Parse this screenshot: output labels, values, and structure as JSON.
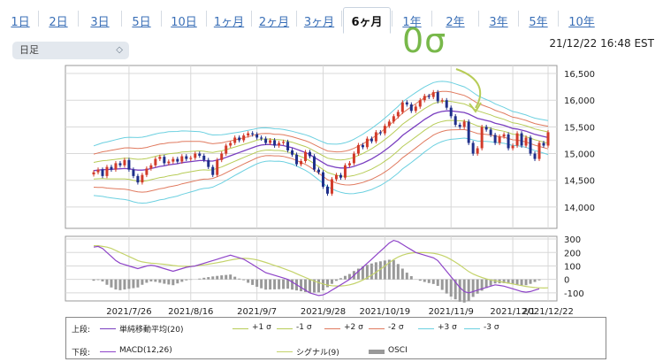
{
  "tabs": [
    {
      "label": "1日",
      "active": false
    },
    {
      "label": "2日",
      "active": false
    },
    {
      "label": "3日",
      "active": false
    },
    {
      "label": "5日",
      "active": false
    },
    {
      "label": "10日",
      "active": false
    },
    {
      "label": "1ヶ月",
      "active": false
    },
    {
      "label": "2ヶ月",
      "active": false
    },
    {
      "label": "3ヶ月",
      "active": false
    },
    {
      "label": "6ヶ月",
      "active": true
    },
    {
      "label": "1年",
      "active": false
    },
    {
      "label": "2年",
      "active": false
    },
    {
      "label": "3年",
      "active": false
    },
    {
      "label": "5年",
      "active": false
    },
    {
      "label": "10年",
      "active": false
    }
  ],
  "select": {
    "value": "日足"
  },
  "timestamp": "21/12/22 16:48 EST",
  "annotation": {
    "text": "0σ",
    "color": "#78b84a"
  },
  "colors": {
    "up": "#d23b2a",
    "down": "#1f2f8a",
    "sma": "#7a3fc0",
    "sigma1": "#b7cc57",
    "sigma2": "#e07a5f",
    "sigma3": "#6cd0e0",
    "macd": "#8e44c8",
    "signal": "#c4d36a",
    "osci": "#999999"
  },
  "chart_data": [
    {
      "type": "candlestick",
      "y_ticks": [
        14000,
        14500,
        15000,
        15500,
        16000,
        16500
      ],
      "y_tick_labels": [
        "14,000",
        "14,500",
        "15,000",
        "15,500",
        "16,000",
        "16,500"
      ],
      "ylim": [
        13600,
        16650
      ],
      "x_labels": [
        "2021/7/26",
        "2021/8/16",
        "2021/9/7",
        "2021/9/28",
        "2021/10/19",
        "2021/11/9",
        "2021/12/1",
        "2021/12/22"
      ],
      "grid": true,
      "close": [
        14650,
        14700,
        14580,
        14750,
        14700,
        14820,
        14780,
        14880,
        14700,
        14580,
        14460,
        14600,
        14720,
        14780,
        14900,
        14940,
        14820,
        14850,
        14900,
        14850,
        14950,
        14900,
        14920,
        15000,
        14960,
        14880,
        14750,
        14600,
        14880,
        15000,
        15150,
        15200,
        15300,
        15250,
        15340,
        15380,
        15360,
        15300,
        15280,
        15200,
        15250,
        15150,
        15200,
        15220,
        15060,
        14980,
        14800,
        14860,
        15030,
        14950,
        14700,
        14650,
        14380,
        14250,
        14520,
        14600,
        14550,
        14780,
        14820,
        15000,
        15160,
        15120,
        15280,
        15230,
        15400,
        15380,
        15520,
        15600,
        15700,
        15780,
        15960,
        15920,
        15800,
        15880,
        16000,
        16080,
        16060,
        16150,
        15980,
        16000,
        15860,
        15700,
        15540,
        15500,
        15600,
        15200,
        15000,
        15100,
        15500,
        15450,
        15350,
        15200,
        15320,
        15360,
        15100,
        15150,
        15380,
        15150,
        15300,
        15000,
        14900,
        15200,
        15150,
        15400
      ],
      "sma_20": [
        14680,
        14690,
        14700,
        14700,
        14705,
        14710,
        14715,
        14720,
        14715,
        14700,
        14690,
        14690,
        14700,
        14720,
        14740,
        14760,
        14770,
        14790,
        14800,
        14810,
        14830,
        14840,
        14850,
        14860,
        14870,
        14870,
        14860,
        14860,
        14880,
        14900,
        14930,
        14960,
        14990,
        15020,
        15050,
        15080,
        15110,
        15140,
        15160,
        15170,
        15170,
        15160,
        15160,
        15150,
        15130,
        15110,
        15080,
        15050,
        15020,
        14980,
        14930,
        14880,
        14830,
        14780,
        14760,
        14740,
        14730,
        14730,
        14740,
        14760,
        14790,
        14820,
        14860,
        14900,
        14950,
        15000,
        15060,
        15120,
        15190,
        15260,
        15340,
        15400,
        15460,
        15520,
        15580,
        15640,
        15690,
        15740,
        15770,
        15790,
        15800,
        15800,
        15790,
        15780,
        15770,
        15740,
        15700,
        15660,
        15640,
        15620,
        15600,
        15570,
        15550,
        15530,
        15500,
        15470,
        15460,
        15440,
        15420,
        15390,
        15360,
        15340,
        15320,
        15300
      ],
      "sigma": 155
    },
    {
      "type": "macd",
      "y_ticks": [
        300,
        200,
        100,
        0,
        -100
      ],
      "y_tick_labels": [
        "300",
        "200",
        "100",
        "0",
        "-100"
      ],
      "ylim": [
        -160,
        320
      ],
      "macd": [
        240,
        245,
        230,
        200,
        170,
        140,
        120,
        110,
        100,
        90,
        80,
        90,
        100,
        105,
        100,
        90,
        80,
        70,
        60,
        70,
        80,
        90,
        95,
        100,
        110,
        120,
        130,
        140,
        150,
        160,
        170,
        180,
        170,
        160,
        150,
        130,
        110,
        90,
        70,
        50,
        40,
        30,
        20,
        10,
        0,
        -20,
        -40,
        -60,
        -80,
        -100,
        -110,
        -120,
        -115,
        -100,
        -80,
        -60,
        -40,
        -20,
        0,
        30,
        60,
        90,
        120,
        150,
        180,
        210,
        240,
        270,
        290,
        280,
        260,
        240,
        220,
        200,
        190,
        180,
        170,
        160,
        140,
        100,
        60,
        20,
        -20,
        -60,
        -90,
        -100,
        -90,
        -80,
        -70,
        -60,
        -50,
        -40,
        -45,
        -50,
        -60,
        -70,
        -80,
        -90,
        -95,
        -90,
        -80,
        -70
      ],
      "signal": [
        250,
        250,
        245,
        240,
        230,
        215,
        200,
        185,
        170,
        155,
        140,
        130,
        125,
        120,
        118,
        115,
        112,
        108,
        103,
        100,
        98,
        97,
        98,
        100,
        104,
        108,
        113,
        118,
        124,
        130,
        137,
        144,
        150,
        154,
        156,
        155,
        151,
        145,
        136,
        126,
        115,
        104,
        93,
        81,
        69,
        56,
        42,
        28,
        14,
        0,
        -13,
        -24,
        -34,
        -42,
        -47,
        -49,
        -49,
        -46,
        -40,
        -32,
        -20,
        -5,
        12,
        32,
        53,
        76,
        100,
        124,
        147,
        166,
        180,
        190,
        196,
        199,
        200,
        199,
        197,
        194,
        188,
        178,
        165,
        148,
        128,
        106,
        82,
        58,
        40,
        26,
        14,
        4,
        -4,
        -10,
        -16,
        -22,
        -28,
        -34,
        -40,
        -46,
        -52,
        -57,
        -61,
        -63,
        -64,
        -63
      ]
    }
  ],
  "legend": {
    "upper_title": "上段:",
    "lower_title": "下段:",
    "upper": [
      {
        "label": "単純移動平均(20)",
        "color": "#7a3fc0"
      },
      {
        "label": "+1 σ",
        "color": "#b7cc57"
      },
      {
        "label": "-1 σ",
        "color": "#b7cc57"
      },
      {
        "label": "+2 σ",
        "color": "#e07a5f"
      },
      {
        "label": "-2 σ",
        "color": "#e07a5f"
      },
      {
        "label": "+3 σ",
        "color": "#6cd0e0"
      },
      {
        "label": "-3 σ",
        "color": "#6cd0e0"
      }
    ],
    "lower": [
      {
        "label": "MACD(12,26)",
        "color": "#8e44c8"
      },
      {
        "label": "シグナル(9)",
        "color": "#c4d36a"
      },
      {
        "label": "OSCI",
        "color": "#999999"
      }
    ]
  }
}
